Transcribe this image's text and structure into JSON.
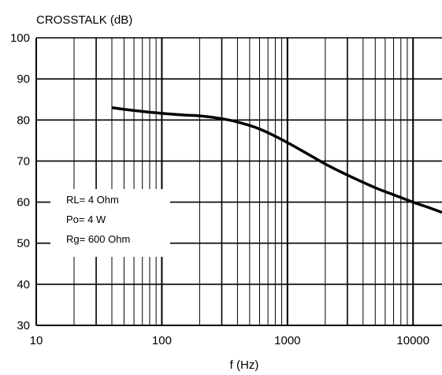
{
  "chart_data": {
    "type": "line",
    "title": "CROSSTALK (dB)",
    "xlabel": "f (Hz)",
    "ylabel": "",
    "x_scale": "log",
    "xlim": [
      10,
      17000
    ],
    "ylim": [
      30,
      100
    ],
    "x_tick_labels": [
      "10",
      "100",
      "1000",
      "10000"
    ],
    "y_tick_labels": [
      "30",
      "40",
      "50",
      "60",
      "70",
      "80",
      "90",
      "100"
    ],
    "grid": true,
    "annotations": [
      "RL= 4 Ohm",
      "Po= 4 W",
      "Rg= 600 Ohm"
    ],
    "series": [
      {
        "x": [
          40,
          60,
          100,
          150,
          200,
          300,
          400,
          600,
          1000,
          2000,
          3000,
          5000,
          7000,
          10000,
          13000,
          17000
        ],
        "y": [
          83,
          82.3,
          81.6,
          81.2,
          81.0,
          80.3,
          79.5,
          77.8,
          74.5,
          69.3,
          66.6,
          63.5,
          61.8,
          60.0,
          58.8,
          57.5
        ]
      }
    ]
  }
}
